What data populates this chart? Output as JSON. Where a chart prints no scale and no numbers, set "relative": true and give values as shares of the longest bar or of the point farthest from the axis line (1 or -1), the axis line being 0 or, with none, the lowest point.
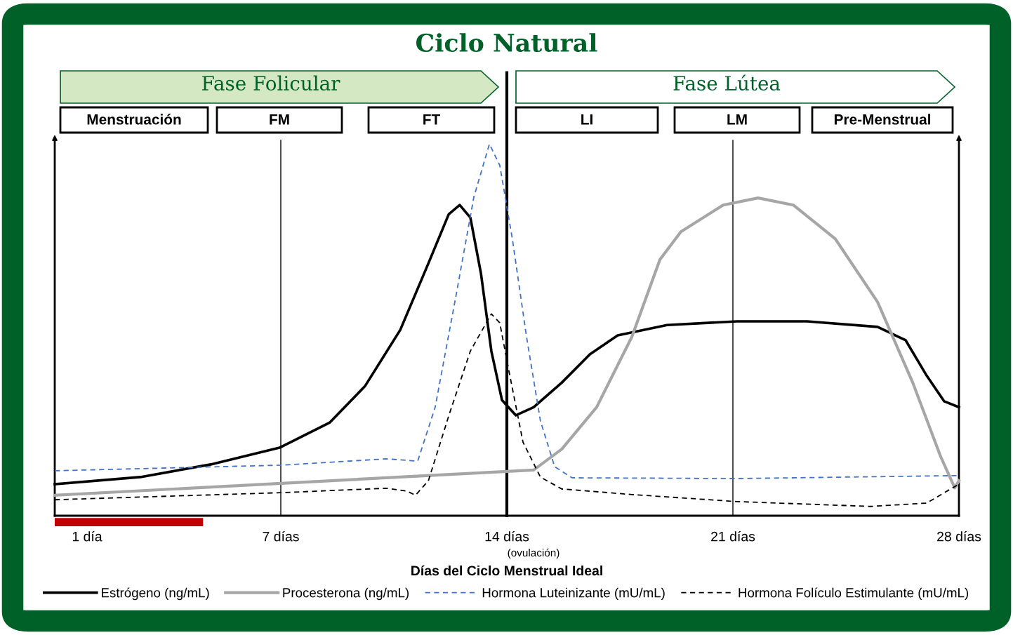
{
  "chart_data": {
    "type": "line",
    "title": "Ciclo Natural",
    "xlabel": "Días del Ciclo Menstrual Ideal",
    "relative": true,
    "xlim": [
      0,
      28
    ],
    "xticks": [
      {
        "value": 1,
        "label": "1 día"
      },
      {
        "value": 7,
        "label": "7 días"
      },
      {
        "value": 14,
        "label": "14 días"
      },
      {
        "value": 21,
        "label": "21 días"
      },
      {
        "value": 28,
        "label": "28 días"
      }
    ],
    "tick_labels": "x",
    "grid": false,
    "legend": "bottom",
    "marker": "none",
    "series": [
      {
        "name": "Estrógeno (ng/mL)",
        "color": "#000000",
        "line_style": "solid",
        "x": [
          0,
          2.65,
          4.83,
          6.96,
          8.52,
          9.61,
          10.7,
          11.57,
          12.2,
          12.54,
          12.87,
          13.2,
          13.52,
          13.85,
          14.28,
          14.83,
          15.7,
          16.57,
          17.43,
          18.96,
          21.13,
          23.3,
          25.48,
          26.35,
          27,
          27.54,
          28
        ],
        "values": [
          0.085,
          0.104,
          0.138,
          0.183,
          0.251,
          0.349,
          0.5,
          0.679,
          0.811,
          0.836,
          0.802,
          0.651,
          0.443,
          0.311,
          0.27,
          0.292,
          0.358,
          0.434,
          0.485,
          0.513,
          0.523,
          0.523,
          0.508,
          0.472,
          0.377,
          0.308,
          0.292
        ]
      },
      {
        "name": "Procesterona (ng/mL)",
        "color": "#a6a6a6",
        "line_style": "solid",
        "x": [
          0,
          14.83,
          15.7,
          16.78,
          17.87,
          18.74,
          19.39,
          20.7,
          21.78,
          22.87,
          24.17,
          25.48,
          26.57,
          27.43,
          27.87,
          28
        ],
        "values": [
          0.055,
          0.123,
          0.179,
          0.292,
          0.481,
          0.689,
          0.764,
          0.836,
          0.855,
          0.836,
          0.745,
          0.575,
          0.358,
          0.16,
          0.075,
          0.094
        ]
      },
      {
        "name": "Hormona Luteinizante (mU/mL)",
        "color": "#4472c4",
        "line_style": "dashed",
        "x": [
          0,
          7,
          10.26,
          11.24,
          11.78,
          12.43,
          12.98,
          13.46,
          13.78,
          14.17,
          14.61,
          15.04,
          15.48,
          16.02,
          21.13,
          28
        ],
        "values": [
          0.121,
          0.136,
          0.153,
          0.147,
          0.292,
          0.594,
          0.858,
          1.0,
          0.943,
          0.745,
          0.481,
          0.255,
          0.132,
          0.102,
          0.1,
          0.108
        ]
      },
      {
        "name": "Hormona Folículo Estimulante (mU/mL)",
        "color": "#000000",
        "line_style": "dashed",
        "x": [
          0,
          7,
          10.26,
          10.91,
          11.17,
          11.57,
          12.22,
          12.87,
          13.52,
          13.78,
          14.07,
          14.5,
          15.04,
          15.7,
          17.87,
          21.13,
          25.26,
          27,
          28
        ],
        "values": [
          0.043,
          0.062,
          0.074,
          0.066,
          0.055,
          0.094,
          0.274,
          0.443,
          0.543,
          0.519,
          0.387,
          0.198,
          0.104,
          0.072,
          0.057,
          0.038,
          0.025,
          0.034,
          0.085
        ]
      }
    ],
    "ref_lines": [
      {
        "axis": "x",
        "value": 7,
        "color": "#000000"
      },
      {
        "axis": "x",
        "value": 14,
        "color": "#000000"
      },
      {
        "axis": "x",
        "value": 21,
        "color": "#000000"
      }
    ],
    "annotations": [
      "Fase Folicular",
      "Fase Lútea",
      "Menstruación",
      "FM",
      "FT",
      "LI",
      "LM",
      "Pre-Menstrual",
      "(ovulación)"
    ]
  }
}
